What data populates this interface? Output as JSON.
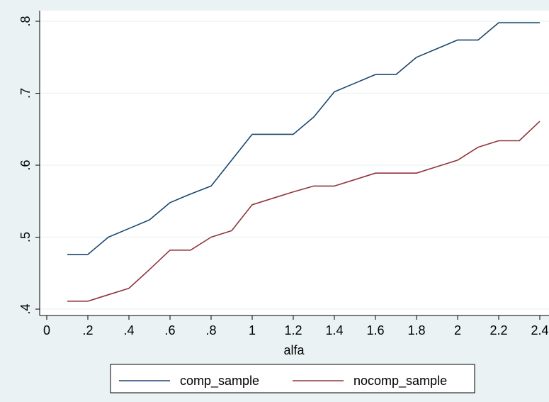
{
  "chart_data": {
    "type": "line",
    "xlabel": "alfa",
    "ylabel": "",
    "xlim": [
      0,
      2.4
    ],
    "ylim": [
      0.4,
      0.8
    ],
    "xticks": [
      0,
      0.2,
      0.4,
      0.6,
      0.8,
      1,
      1.2,
      1.4,
      1.6,
      1.8,
      2,
      2.2,
      2.4
    ],
    "xtick_labels": [
      "0",
      ".2",
      ".4",
      ".6",
      ".8",
      "1",
      "1.2",
      "1.4",
      "1.6",
      "1.8",
      "2",
      "2.2",
      "2.4"
    ],
    "yticks": [
      0.4,
      0.5,
      0.6,
      0.7,
      0.8
    ],
    "ytick_labels": [
      ".4",
      ".5",
      ".6",
      ".7",
      ".8"
    ],
    "grid": "horizontal",
    "legend_position": "bottom",
    "x": [
      0.1,
      0.2,
      0.3,
      0.4,
      0.5,
      0.6,
      0.7,
      0.8,
      0.9,
      1.0,
      1.1,
      1.2,
      1.3,
      1.4,
      1.5,
      1.6,
      1.7,
      1.8,
      1.9,
      2.0,
      2.1,
      2.2,
      2.3,
      2.4
    ],
    "series": [
      {
        "name": "comp_sample",
        "color": "#1a476f",
        "values": [
          0.476,
          0.476,
          0.5,
          0.512,
          0.524,
          0.548,
          0.56,
          0.571,
          0.607,
          0.643,
          0.643,
          0.643,
          0.667,
          0.702,
          0.714,
          0.726,
          0.726,
          0.75,
          0.762,
          0.774,
          0.774,
          0.798,
          0.798,
          0.798
        ]
      },
      {
        "name": "nocomp_sample",
        "color": "#90353b",
        "values": [
          0.411,
          0.411,
          0.42,
          0.429,
          0.455,
          0.482,
          0.482,
          0.5,
          0.509,
          0.545,
          0.554,
          0.563,
          0.571,
          0.571,
          0.58,
          0.589,
          0.589,
          0.589,
          0.598,
          0.607,
          0.625,
          0.634,
          0.634,
          0.661
        ]
      }
    ]
  }
}
